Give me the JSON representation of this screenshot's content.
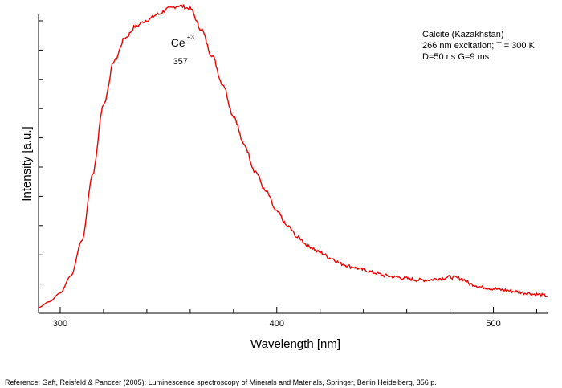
{
  "chart_data": {
    "type": "line",
    "title": "",
    "xlabel": "Wavelength [nm]",
    "ylabel": "Intensity [a.u.]",
    "xlim": [
      290,
      525
    ],
    "ylim": [
      0,
      1.03
    ],
    "x_ticks": [
      300,
      400,
      500
    ],
    "x_minor_step": 20,
    "y_tick_count": 10,
    "info_lines": [
      "Calcite (Kazakhstan)",
      "266 nm excitation; T = 300 K",
      "D=50 ns G=9 ms"
    ],
    "peak_annotation": {
      "ion": "Ce",
      "charge": "+3",
      "wavelength_label": "357",
      "x": 357
    },
    "series": [
      {
        "color": "#ee0000",
        "x": [
          290,
          295,
          300,
          305,
          310,
          315,
          320,
          325,
          330,
          335,
          340,
          345,
          350,
          355,
          360,
          365,
          370,
          375,
          380,
          385,
          390,
          395,
          400,
          405,
          410,
          415,
          420,
          425,
          430,
          435,
          440,
          445,
          450,
          455,
          460,
          465,
          470,
          475,
          480,
          485,
          490,
          495,
          500,
          505,
          510,
          515,
          520,
          525
        ],
        "y": [
          0.02,
          0.04,
          0.07,
          0.13,
          0.25,
          0.48,
          0.72,
          0.87,
          0.95,
          0.99,
          1.01,
          1.03,
          1.05,
          1.06,
          1.05,
          0.98,
          0.89,
          0.79,
          0.68,
          0.58,
          0.49,
          0.42,
          0.35,
          0.3,
          0.26,
          0.23,
          0.21,
          0.19,
          0.17,
          0.16,
          0.15,
          0.14,
          0.13,
          0.125,
          0.12,
          0.115,
          0.115,
          0.12,
          0.125,
          0.12,
          0.1,
          0.09,
          0.085,
          0.08,
          0.075,
          0.07,
          0.065,
          0.06
        ]
      }
    ]
  },
  "reference": "Reference: Gaft, Reisfeld & Panczer (2005): Luminescence spectroscopy of Minerals and Materials, Springer, Berlin Heidelberg, 356 p."
}
